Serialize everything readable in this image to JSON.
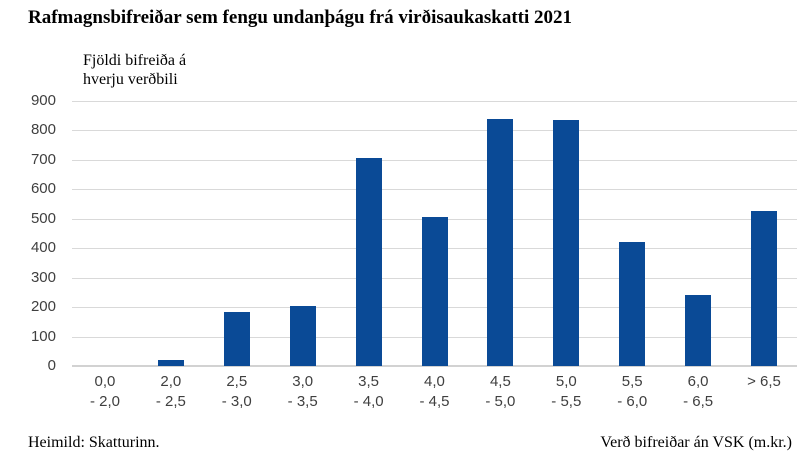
{
  "header": {
    "title": "Rafmagnsbifreiðar sem fengu undanþágu frá virðisaukaskatti 2021"
  },
  "y_axis": {
    "title_line1": "Fjöldi bifreiða á",
    "title_line2": "hverju verðbili"
  },
  "footer": {
    "source": "Heimild: Skatturinn.",
    "x_axis_title": "Verð bifreiðar án VSK (m.kr.)"
  },
  "chart_data": {
    "type": "bar",
    "title": "Rafmagnsbifreiðar sem fengu undanþágu frá virðisaukaskatti 2021",
    "ylabel": "Fjöldi bifreiða á hverju verðbili",
    "xlabel": "Verð bifreiðar án VSK (m.kr.)",
    "source": "Heimild: Skatturinn.",
    "categories": [
      "0,0 - 2,0",
      "2,0 - 2,5",
      "2,5 - 3,0",
      "3,0 - 3,5",
      "3,5 - 4,0",
      "4,0 - 4,5",
      "4,5 - 5,0",
      "5,0 - 5,5",
      "5,5 - 6,0",
      "6,0 - 6,5",
      "> 6,5"
    ],
    "category_labels": [
      {
        "line1": "0,0",
        "line2": "- 2,0"
      },
      {
        "line1": "2,0",
        "line2": "- 2,5"
      },
      {
        "line1": "2,5",
        "line2": "- 3,0"
      },
      {
        "line1": "3,0",
        "line2": "- 3,5"
      },
      {
        "line1": "3,5",
        "line2": "- 4,0"
      },
      {
        "line1": "4,0",
        "line2": "- 4,5"
      },
      {
        "line1": "4,5",
        "line2": "- 5,0"
      },
      {
        "line1": "5,0",
        "line2": "- 5,5"
      },
      {
        "line1": "5,5",
        "line2": "- 6,0"
      },
      {
        "line1": "6,0",
        "line2": "- 6,5"
      },
      {
        "line1": "> 6,5",
        "line2": ""
      }
    ],
    "values": [
      0,
      20,
      185,
      205,
      705,
      505,
      840,
      835,
      420,
      240,
      525
    ],
    "ylim": [
      0,
      900
    ],
    "ytick_interval": 100,
    "ytick_labels": [
      "0",
      "100",
      "200",
      "300",
      "400",
      "500",
      "600",
      "700",
      "800",
      "900"
    ],
    "grid": true,
    "legend": false,
    "bar_color": "#0a4a96",
    "grid_color": "#d9d9d9"
  }
}
